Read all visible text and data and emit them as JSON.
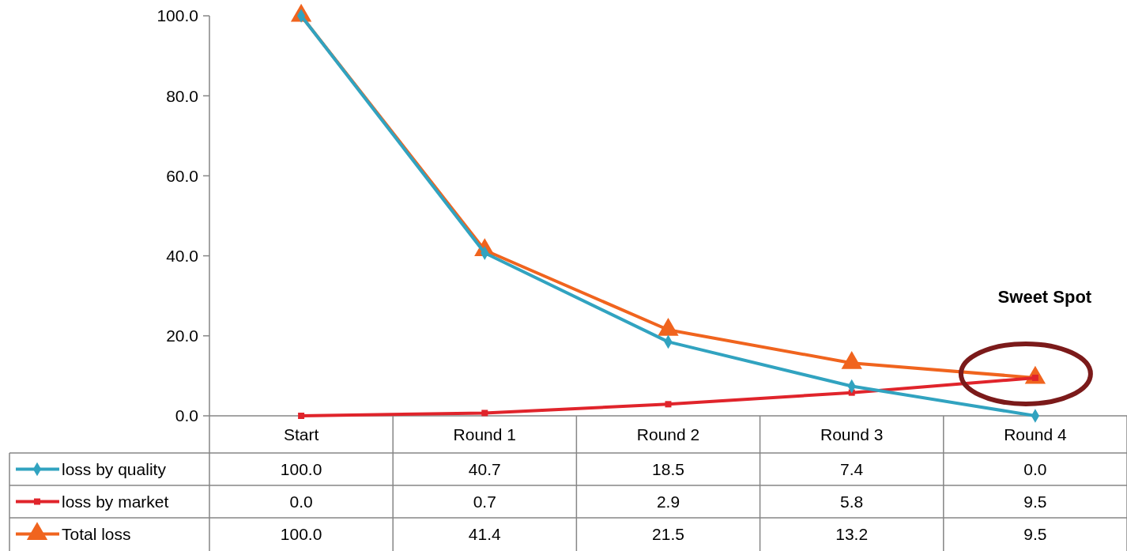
{
  "chart_data": {
    "type": "line",
    "categories": [
      "Start",
      "Round 1",
      "Round 2",
      "Round 3",
      "Round 4"
    ],
    "ylim": [
      0,
      100
    ],
    "yticks": [
      {
        "value": 0,
        "label": "0.0"
      },
      {
        "value": 20,
        "label": "20.0"
      },
      {
        "value": 40,
        "label": "40.0"
      },
      {
        "value": 60,
        "label": "60.0"
      },
      {
        "value": 80,
        "label": "80.0"
      },
      {
        "value": 100,
        "label": "100.0"
      }
    ],
    "grid": false,
    "legend": "bottom",
    "line_style": "solid",
    "series": [
      {
        "name": "loss by quality",
        "color": "#31a3c0",
        "marker": "diamond",
        "values": [
          100,
          40.7,
          18.5,
          7.4,
          0
        ],
        "value_labels": [
          "100.0",
          "40.7",
          "18.5",
          "7.4",
          "0.0"
        ]
      },
      {
        "name": "loss by market",
        "color": "#e0242b",
        "marker": "square",
        "values": [
          0,
          0.7,
          2.9,
          5.8,
          9.5
        ],
        "value_labels": [
          "0.0",
          "0.7",
          "2.9",
          "5.8",
          "9.5"
        ]
      },
      {
        "name": "Total loss",
        "color": "#f0641e",
        "marker": "triangle",
        "values": [
          100,
          41.4,
          21.5,
          13.2,
          9.5
        ],
        "value_labels": [
          "100.0",
          "41.4",
          "21.5",
          "13.2",
          "9.5"
        ]
      }
    ],
    "annotations": [
      "Sweet Spot"
    ]
  }
}
